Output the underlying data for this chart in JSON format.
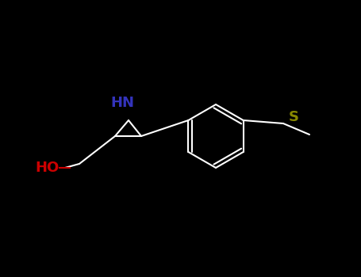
{
  "background_color": "#000000",
  "fig_width": 4.55,
  "fig_height": 3.5,
  "dpi": 100,
  "HN_label": "HN",
  "HN_color": "#3333bb",
  "HN_fontsize": 13,
  "S_label": "S",
  "S_color": "#888800",
  "S_fontsize": 13,
  "HO_label": "HO",
  "HO_color": "#cc0000",
  "HO_fontsize": 13,
  "line_color": "#ffffff",
  "line_width": 1.5
}
